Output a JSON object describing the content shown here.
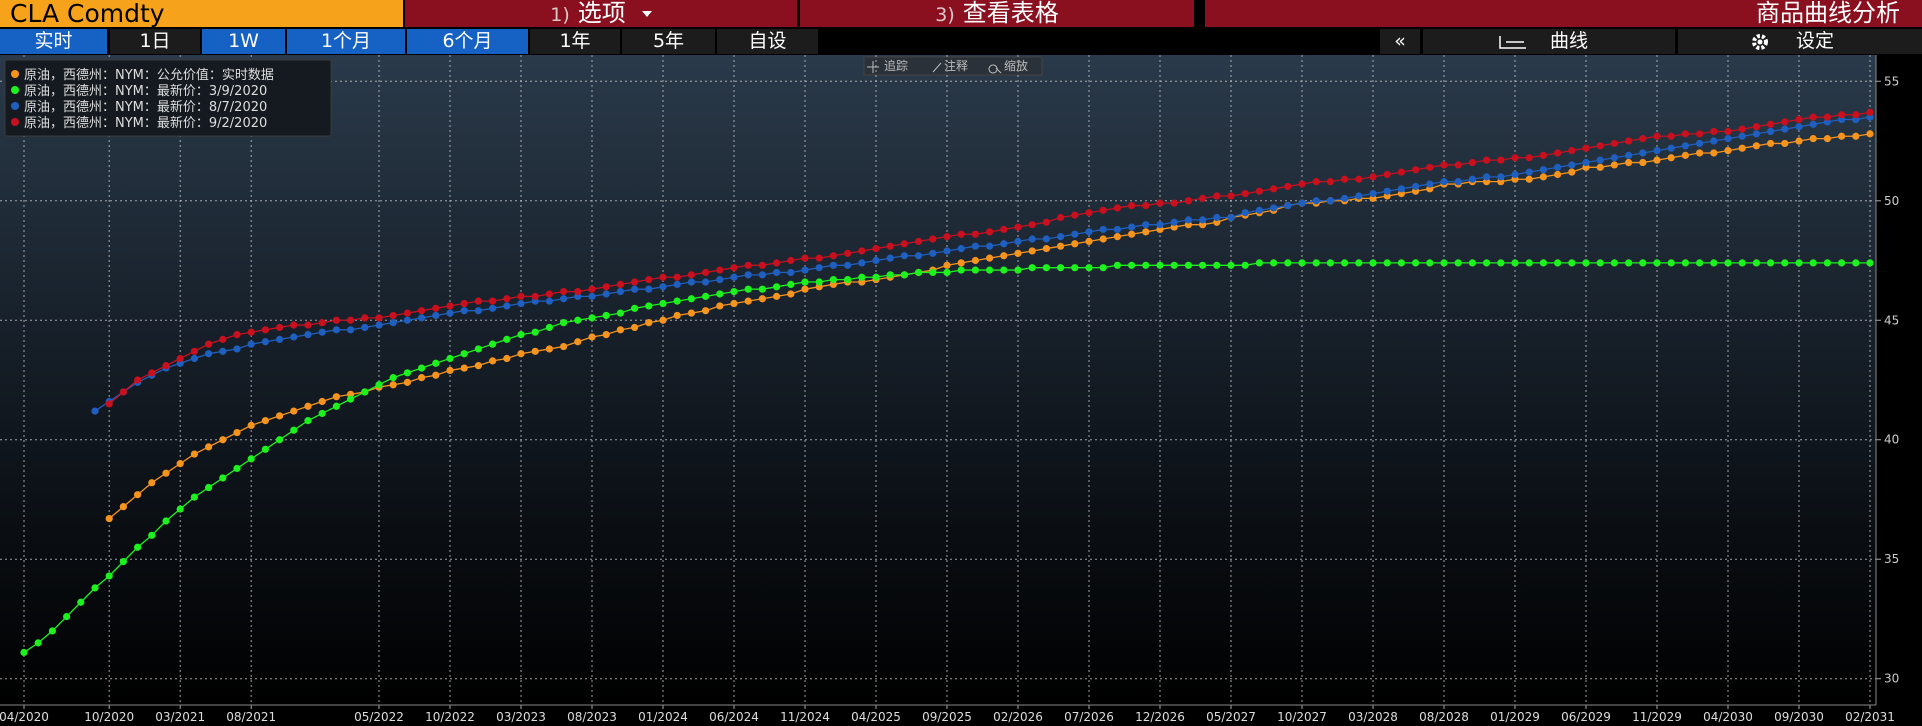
{
  "header": {
    "ticker": "CLA Comdty",
    "options": {
      "number": "1)",
      "label": "选项"
    },
    "table": {
      "number": "3)",
      "label": "查看表格"
    },
    "title": "商品曲线分析"
  },
  "range_buttons": [
    "实时",
    "1日",
    "1W",
    "1个月",
    "6个月",
    "1年",
    "5年",
    "自设"
  ],
  "collapse": "«",
  "curve_button": "曲线",
  "settings_button": "设定",
  "chart_tools": [
    "追踪",
    "注释",
    "缩放"
  ],
  "chart_data": {
    "type": "line",
    "categories": [
      "04/2020",
      null,
      null,
      null,
      null,
      null,
      "10/2020",
      null,
      null,
      null,
      null,
      "03/2021",
      null,
      null,
      null,
      null,
      "08/2021",
      null,
      null,
      null,
      null,
      null,
      null,
      null,
      null,
      "05/2022",
      null,
      null,
      null,
      null,
      "10/2022",
      null,
      null,
      null,
      null,
      "03/2023",
      null,
      null,
      null,
      null,
      "08/2023",
      null,
      null,
      null,
      null,
      "01/2024",
      null,
      null,
      null,
      null,
      "06/2024",
      null,
      null,
      null,
      null,
      "11/2024",
      null,
      null,
      null,
      null,
      "04/2025",
      null,
      null,
      null,
      null,
      "09/2025",
      null,
      null,
      null,
      null,
      "02/2026",
      null,
      null,
      null,
      null,
      "07/2026",
      null,
      null,
      null,
      null,
      "12/2026",
      null,
      null,
      null,
      null,
      "05/2027",
      null,
      null,
      null,
      null,
      "10/2027",
      null,
      null,
      null,
      null,
      "03/2028",
      null,
      null,
      null,
      null,
      "08/2028",
      null,
      null,
      null,
      null,
      "01/2029",
      null,
      null,
      null,
      null,
      "06/2029",
      null,
      null,
      null,
      null,
      "11/2029",
      null,
      null,
      null,
      null,
      "04/2030",
      null,
      null,
      null,
      null,
      "09/2030",
      null,
      null,
      null,
      null,
      "02/2031"
    ],
    "series": [
      {
        "name": "原油，西德州：NYM：公允价值：实时数据",
        "color": "#f7941d",
        "values": [
          null,
          null,
          null,
          null,
          null,
          null,
          36.7,
          37.2,
          37.7,
          38.2,
          38.6,
          39.0,
          39.4,
          39.7,
          40.0,
          40.3,
          40.6,
          40.8,
          41.0,
          41.2,
          41.4,
          41.6,
          41.8,
          41.9,
          42.0,
          42.2,
          42.3,
          42.4,
          42.6,
          42.7,
          42.9,
          43.0,
          43.1,
          43.3,
          43.4,
          43.6,
          43.7,
          43.8,
          43.9,
          44.1,
          44.3,
          44.4,
          44.6,
          44.7,
          44.9,
          45.0,
          45.2,
          45.3,
          45.4,
          45.6,
          45.7,
          45.8,
          45.9,
          46.0,
          46.1,
          46.3,
          46.4,
          46.5,
          46.6,
          46.6,
          46.7,
          46.8,
          46.9,
          47.0,
          47.1,
          47.3,
          47.4,
          47.5,
          47.6,
          47.7,
          47.8,
          47.9,
          48.0,
          48.1,
          48.2,
          48.3,
          48.4,
          48.5,
          48.6,
          48.7,
          48.8,
          48.9,
          49.0,
          49.0,
          49.1,
          49.3,
          49.4,
          49.5,
          49.6,
          49.8,
          49.9,
          49.9,
          50.0,
          50.0,
          50.1,
          50.1,
          50.2,
          50.3,
          50.4,
          50.5,
          50.7,
          50.7,
          50.8,
          50.8,
          50.8,
          50.9,
          50.9,
          51.0,
          51.1,
          51.2,
          51.4,
          51.4,
          51.5,
          51.6,
          51.6,
          51.7,
          51.8,
          51.9,
          52.0,
          52.0,
          52.1,
          52.2,
          52.3,
          52.4,
          52.4,
          52.5,
          52.6,
          52.6,
          52.7,
          52.7,
          52.8
        ]
      },
      {
        "name": "原油，西德州：NYM：最新价：3/9/2020",
        "color": "#1ef21e",
        "values": [
          31.1,
          31.5,
          32.0,
          32.6,
          33.2,
          33.8,
          34.3,
          34.9,
          35.5,
          36.0,
          36.6,
          37.1,
          37.6,
          38.0,
          38.4,
          38.8,
          39.2,
          39.6,
          40.0,
          40.4,
          40.8,
          41.1,
          41.4,
          41.7,
          42.0,
          42.3,
          42.6,
          42.8,
          43.0,
          43.2,
          43.4,
          43.6,
          43.8,
          44.0,
          44.2,
          44.4,
          44.5,
          44.7,
          44.9,
          45.0,
          45.1,
          45.2,
          45.3,
          45.5,
          45.6,
          45.7,
          45.8,
          45.9,
          46.0,
          46.1,
          46.2,
          46.3,
          46.3,
          46.4,
          46.5,
          46.6,
          46.6,
          46.7,
          46.7,
          46.8,
          46.8,
          46.9,
          46.9,
          47.0,
          47.0,
          47.0,
          47.1,
          47.1,
          47.1,
          47.1,
          47.1,
          47.2,
          47.2,
          47.2,
          47.2,
          47.2,
          47.2,
          47.3,
          47.3,
          47.3,
          47.3,
          47.3,
          47.3,
          47.3,
          47.3,
          47.3,
          47.3,
          47.4,
          47.4,
          47.4,
          47.4,
          47.4,
          47.4,
          47.4,
          47.4,
          47.4,
          47.4,
          47.4,
          47.4,
          47.4,
          47.4,
          47.4,
          47.4,
          47.4,
          47.4,
          47.4,
          47.4,
          47.4,
          47.4,
          47.4,
          47.4,
          47.4,
          47.4,
          47.4,
          47.4,
          47.4,
          47.4,
          47.4,
          47.4,
          47.4,
          47.4,
          47.4,
          47.4,
          47.4,
          47.4,
          47.4,
          47.4,
          47.4,
          47.4,
          47.4,
          47.4
        ]
      },
      {
        "name": "原油，西德州：NYM：最新价：8/7/2020",
        "color": "#1f5fbf",
        "values": [
          null,
          null,
          null,
          null,
          null,
          41.2,
          41.6,
          42.0,
          42.4,
          42.7,
          43.0,
          43.2,
          43.4,
          43.6,
          43.7,
          43.8,
          44.0,
          44.1,
          44.2,
          44.3,
          44.4,
          44.5,
          44.6,
          44.6,
          44.7,
          44.8,
          44.9,
          45.0,
          45.1,
          45.2,
          45.3,
          45.4,
          45.4,
          45.5,
          45.6,
          45.7,
          45.8,
          45.8,
          45.9,
          46.0,
          46.0,
          46.1,
          46.2,
          46.3,
          46.3,
          46.4,
          46.5,
          46.6,
          46.6,
          46.7,
          46.8,
          46.9,
          46.9,
          47.0,
          47.0,
          47.1,
          47.2,
          47.3,
          47.3,
          47.4,
          47.5,
          47.6,
          47.7,
          47.7,
          47.8,
          47.9,
          48.0,
          48.1,
          48.1,
          48.2,
          48.3,
          48.4,
          48.4,
          48.5,
          48.6,
          48.7,
          48.8,
          48.8,
          48.9,
          49.0,
          49.0,
          49.1,
          49.2,
          49.2,
          49.3,
          49.3,
          49.5,
          49.6,
          49.7,
          49.8,
          49.9,
          50.0,
          50.0,
          50.1,
          50.2,
          50.3,
          50.4,
          50.5,
          50.6,
          50.7,
          50.8,
          50.8,
          50.9,
          51.0,
          51.0,
          51.1,
          51.2,
          51.3,
          51.4,
          51.5,
          51.6,
          51.7,
          51.8,
          51.9,
          52.0,
          52.1,
          52.2,
          52.3,
          52.4,
          52.5,
          52.6,
          52.7,
          52.8,
          52.9,
          53.0,
          53.1,
          53.2,
          53.3,
          53.4,
          53.4,
          53.5
        ]
      },
      {
        "name": "原油，西德州：NYM：最新价：9/2/2020",
        "color": "#c8101e",
        "values": [
          null,
          null,
          null,
          null,
          null,
          null,
          41.5,
          42.0,
          42.5,
          42.8,
          43.1,
          43.4,
          43.7,
          44.0,
          44.2,
          44.4,
          44.5,
          44.6,
          44.7,
          44.8,
          44.8,
          44.9,
          45.0,
          45.0,
          45.1,
          45.1,
          45.2,
          45.3,
          45.4,
          45.5,
          45.6,
          45.7,
          45.8,
          45.8,
          45.9,
          46.0,
          46.0,
          46.1,
          46.2,
          46.2,
          46.3,
          46.4,
          46.5,
          46.6,
          46.7,
          46.8,
          46.8,
          46.9,
          47.0,
          47.1,
          47.2,
          47.3,
          47.3,
          47.4,
          47.5,
          47.6,
          47.6,
          47.7,
          47.8,
          47.9,
          48.0,
          48.1,
          48.2,
          48.3,
          48.4,
          48.5,
          48.6,
          48.6,
          48.7,
          48.8,
          48.9,
          49.0,
          49.1,
          49.3,
          49.4,
          49.5,
          49.6,
          49.7,
          49.8,
          49.8,
          49.9,
          49.9,
          50.0,
          50.1,
          50.2,
          50.2,
          50.3,
          50.4,
          50.5,
          50.6,
          50.7,
          50.8,
          50.8,
          50.9,
          50.9,
          51.0,
          51.1,
          51.2,
          51.3,
          51.4,
          51.5,
          51.5,
          51.6,
          51.7,
          51.7,
          51.8,
          51.8,
          51.9,
          52.0,
          52.1,
          52.2,
          52.3,
          52.4,
          52.5,
          52.6,
          52.7,
          52.7,
          52.8,
          52.8,
          52.9,
          52.9,
          53.0,
          53.1,
          53.2,
          53.3,
          53.4,
          53.5,
          53.5,
          53.6,
          53.6,
          53.7
        ]
      }
    ],
    "ylim": [
      28.9,
      56.1
    ],
    "yticks": [
      30,
      35,
      40,
      45,
      50,
      55
    ],
    "grid": true,
    "legend": "upper left"
  }
}
